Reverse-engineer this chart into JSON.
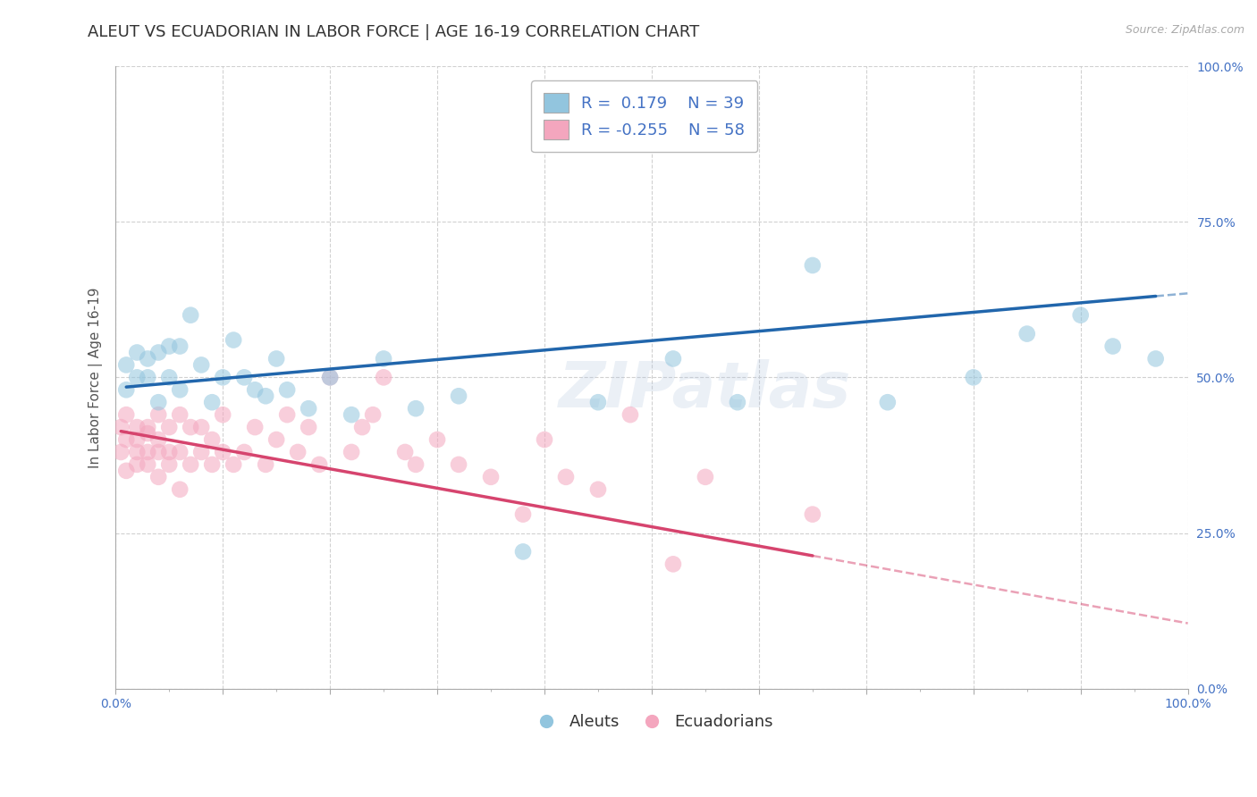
{
  "title": "ALEUT VS ECUADORIAN IN LABOR FORCE | AGE 16-19 CORRELATION CHART",
  "source": "Source: ZipAtlas.com",
  "ylabel": "In Labor Force | Age 16-19",
  "watermark": "ZIPatlas",
  "aleut_R": 0.179,
  "aleut_N": 39,
  "ecuadorian_R": -0.255,
  "ecuadorian_N": 58,
  "aleut_color": "#92c5de",
  "ecuadorian_color": "#f4a6be",
  "aleut_line_color": "#2166ac",
  "ecuadorian_line_color": "#d6446e",
  "xlim": [
    0.0,
    1.0
  ],
  "ylim": [
    0.0,
    1.0
  ],
  "background_color": "#ffffff",
  "grid_color": "#cccccc",
  "title_fontsize": 13,
  "axis_label_fontsize": 11,
  "tick_fontsize": 10,
  "legend_fontsize": 13,
  "marker_size": 180,
  "marker_alpha": 0.55,
  "right_ytick_color": "#4472c4",
  "aleut_x": [
    0.01,
    0.01,
    0.02,
    0.02,
    0.03,
    0.03,
    0.04,
    0.04,
    0.05,
    0.05,
    0.06,
    0.06,
    0.07,
    0.08,
    0.09,
    0.1,
    0.11,
    0.12,
    0.13,
    0.14,
    0.15,
    0.16,
    0.18,
    0.2,
    0.22,
    0.25,
    0.28,
    0.32,
    0.38,
    0.45,
    0.52,
    0.58,
    0.65,
    0.72,
    0.8,
    0.85,
    0.9,
    0.93,
    0.97
  ],
  "aleut_y": [
    0.52,
    0.48,
    0.5,
    0.54,
    0.5,
    0.53,
    0.46,
    0.54,
    0.55,
    0.5,
    0.48,
    0.55,
    0.6,
    0.52,
    0.46,
    0.5,
    0.56,
    0.5,
    0.48,
    0.47,
    0.53,
    0.48,
    0.45,
    0.5,
    0.44,
    0.53,
    0.45,
    0.47,
    0.22,
    0.46,
    0.53,
    0.46,
    0.68,
    0.46,
    0.5,
    0.57,
    0.6,
    0.55,
    0.53
  ],
  "ecuadorian_x": [
    0.005,
    0.005,
    0.01,
    0.01,
    0.01,
    0.02,
    0.02,
    0.02,
    0.02,
    0.03,
    0.03,
    0.03,
    0.03,
    0.04,
    0.04,
    0.04,
    0.04,
    0.05,
    0.05,
    0.05,
    0.06,
    0.06,
    0.06,
    0.07,
    0.07,
    0.08,
    0.08,
    0.09,
    0.09,
    0.1,
    0.1,
    0.11,
    0.12,
    0.13,
    0.14,
    0.15,
    0.16,
    0.17,
    0.18,
    0.19,
    0.2,
    0.22,
    0.23,
    0.24,
    0.25,
    0.27,
    0.28,
    0.3,
    0.32,
    0.35,
    0.38,
    0.4,
    0.42,
    0.45,
    0.48,
    0.52,
    0.55,
    0.65
  ],
  "ecuadorian_y": [
    0.38,
    0.42,
    0.4,
    0.35,
    0.44,
    0.42,
    0.38,
    0.36,
    0.4,
    0.41,
    0.38,
    0.42,
    0.36,
    0.4,
    0.38,
    0.44,
    0.34,
    0.38,
    0.42,
    0.36,
    0.44,
    0.38,
    0.32,
    0.42,
    0.36,
    0.38,
    0.42,
    0.36,
    0.4,
    0.38,
    0.44,
    0.36,
    0.38,
    0.42,
    0.36,
    0.4,
    0.44,
    0.38,
    0.42,
    0.36,
    0.5,
    0.38,
    0.42,
    0.44,
    0.5,
    0.38,
    0.36,
    0.4,
    0.36,
    0.34,
    0.28,
    0.4,
    0.34,
    0.32,
    0.44,
    0.2,
    0.34,
    0.28
  ],
  "aleut_trend_x0": 0.0,
  "aleut_trend_y0": 0.483,
  "aleut_trend_x1": 1.0,
  "aleut_trend_y1": 0.635,
  "ecu_trend_x0": 0.0,
  "ecu_trend_y0": 0.415,
  "ecu_trend_x1": 1.0,
  "ecu_trend_y1": 0.105
}
